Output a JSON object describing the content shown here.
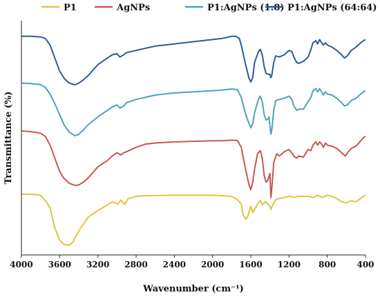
{
  "chart_data": {
    "type": "line",
    "xlabel": "Wavenumber (cm⁻¹)",
    "ylabel": "Transmittance (%)",
    "xlim": [
      4000,
      400
    ],
    "x_reversed": true,
    "x_ticks": [
      4000,
      3600,
      3200,
      2800,
      2400,
      2000,
      1600,
      1200,
      800,
      400
    ],
    "x_tick_labels": [
      "4000",
      "3600",
      "3200",
      "2800",
      "2400",
      "2000",
      "1600",
      "1200",
      "800",
      "400"
    ],
    "ylim": [
      0,
      100
    ],
    "y_ticks_visible": false,
    "grid": false,
    "legend_position": "top",
    "series": [
      {
        "name": "P1",
        "color": "#e0c440",
        "points": [
          [
            4000,
            23.5
          ],
          [
            3900,
            23.5
          ],
          [
            3800,
            23.0
          ],
          [
            3740,
            20.0
          ],
          [
            3700,
            17.0
          ],
          [
            3650,
            8.0
          ],
          [
            3600,
            2.5
          ],
          [
            3560,
            0.5
          ],
          [
            3500,
            0.0
          ],
          [
            3460,
            1.5
          ],
          [
            3420,
            5.0
          ],
          [
            3380,
            8.0
          ],
          [
            3300,
            13.0
          ],
          [
            3200,
            16.0
          ],
          [
            3120,
            18.0
          ],
          [
            3050,
            20.0
          ],
          [
            2990,
            19.0
          ],
          [
            2960,
            20.8
          ],
          [
            2920,
            18.8
          ],
          [
            2880,
            21.5
          ],
          [
            2800,
            22.5
          ],
          [
            2700,
            22.8
          ],
          [
            2400,
            23.0
          ],
          [
            2000,
            23.0
          ],
          [
            1900,
            22.8
          ],
          [
            1800,
            22.5
          ],
          [
            1740,
            21.0
          ],
          [
            1700,
            19.0
          ],
          [
            1680,
            14.0
          ],
          [
            1650,
            12.0
          ],
          [
            1630,
            13.5
          ],
          [
            1600,
            18.0
          ],
          [
            1580,
            15.0
          ],
          [
            1560,
            16.5
          ],
          [
            1530,
            19.0
          ],
          [
            1500,
            20.5
          ],
          [
            1480,
            18.5
          ],
          [
            1450,
            20.0
          ],
          [
            1420,
            19.0
          ],
          [
            1400,
            18.0
          ],
          [
            1390,
            16.5
          ],
          [
            1370,
            18.5
          ],
          [
            1340,
            21.0
          ],
          [
            1300,
            21.5
          ],
          [
            1200,
            22.5
          ],
          [
            1150,
            22.0
          ],
          [
            1100,
            22.5
          ],
          [
            1000,
            22.5
          ],
          [
            950,
            22.0
          ],
          [
            900,
            23.0
          ],
          [
            850,
            22.0
          ],
          [
            800,
            23.0
          ],
          [
            750,
            22.5
          ],
          [
            700,
            21.5
          ],
          [
            650,
            20.0
          ],
          [
            600,
            19.5
          ],
          [
            550,
            20.5
          ],
          [
            500,
            20.0
          ],
          [
            450,
            21.5
          ],
          [
            420,
            22.5
          ],
          [
            400,
            23.0
          ]
        ]
      },
      {
        "name": "AgNPs",
        "color": "#c9544f",
        "points": [
          [
            4000,
            52.5
          ],
          [
            3900,
            52.2
          ],
          [
            3800,
            51.5
          ],
          [
            3750,
            50.0
          ],
          [
            3700,
            46.0
          ],
          [
            3650,
            40.0
          ],
          [
            3600,
            34.0
          ],
          [
            3560,
            31.0
          ],
          [
            3500,
            28.5
          ],
          [
            3440,
            27.5
          ],
          [
            3400,
            27.8
          ],
          [
            3350,
            29.0
          ],
          [
            3300,
            31.0
          ],
          [
            3200,
            36.0
          ],
          [
            3100,
            39.0
          ],
          [
            3050,
            41.0
          ],
          [
            3000,
            42.5
          ],
          [
            2960,
            41.5
          ],
          [
            2930,
            42.5
          ],
          [
            2900,
            43.0
          ],
          [
            2800,
            45.0
          ],
          [
            2700,
            46.5
          ],
          [
            2600,
            47.0
          ],
          [
            2400,
            47.5
          ],
          [
            2200,
            47.8
          ],
          [
            2000,
            48.0
          ],
          [
            1900,
            48.0
          ],
          [
            1800,
            48.3
          ],
          [
            1740,
            48.2
          ],
          [
            1700,
            45.0
          ],
          [
            1660,
            36.0
          ],
          [
            1620,
            28.0
          ],
          [
            1600,
            25.5
          ],
          [
            1580,
            29.0
          ],
          [
            1560,
            35.0
          ],
          [
            1530,
            42.0
          ],
          [
            1500,
            43.5
          ],
          [
            1480,
            40.0
          ],
          [
            1460,
            32.0
          ],
          [
            1440,
            29.0
          ],
          [
            1420,
            30.0
          ],
          [
            1400,
            33.0
          ],
          [
            1390,
            22.0
          ],
          [
            1380,
            26.0
          ],
          [
            1360,
            38.0
          ],
          [
            1330,
            42.0
          ],
          [
            1300,
            41.0
          ],
          [
            1250,
            43.0
          ],
          [
            1200,
            44.0
          ],
          [
            1180,
            43.0
          ],
          [
            1150,
            41.0
          ],
          [
            1120,
            40.0
          ],
          [
            1100,
            41.0
          ],
          [
            1050,
            40.5
          ],
          [
            1000,
            44.0
          ],
          [
            970,
            43.5
          ],
          [
            950,
            46.0
          ],
          [
            920,
            47.5
          ],
          [
            900,
            46.0
          ],
          [
            880,
            47.5
          ],
          [
            860,
            46.5
          ],
          [
            840,
            45.0
          ],
          [
            820,
            47.0
          ],
          [
            800,
            46.0
          ],
          [
            750,
            45.5
          ],
          [
            700,
            44.5
          ],
          [
            650,
            42.5
          ],
          [
            610,
            41.0
          ],
          [
            580,
            43.0
          ],
          [
            550,
            44.5
          ],
          [
            500,
            45.5
          ],
          [
            450,
            48.0
          ],
          [
            420,
            49.5
          ],
          [
            400,
            50.0
          ]
        ]
      },
      {
        "name": "P1:AgNPs (1:8)",
        "color": "#4aa3b5",
        "points": [
          [
            4000,
            74.5
          ],
          [
            3900,
            74.3
          ],
          [
            3800,
            73.8
          ],
          [
            3750,
            72.5
          ],
          [
            3700,
            69.5
          ],
          [
            3650,
            65.0
          ],
          [
            3600,
            60.0
          ],
          [
            3550,
            55.0
          ],
          [
            3500,
            52.0
          ],
          [
            3440,
            50.3
          ],
          [
            3400,
            51.0
          ],
          [
            3350,
            53.0
          ],
          [
            3300,
            55.5
          ],
          [
            3200,
            59.0
          ],
          [
            3100,
            62.0
          ],
          [
            3050,
            63.5
          ],
          [
            3000,
            64.5
          ],
          [
            2970,
            63.0
          ],
          [
            2930,
            64.0
          ],
          [
            2900,
            65.5
          ],
          [
            2800,
            67.0
          ],
          [
            2700,
            68.0
          ],
          [
            2600,
            69.0
          ],
          [
            2400,
            70.0
          ],
          [
            2200,
            70.5
          ],
          [
            2000,
            71.0
          ],
          [
            1900,
            71.3
          ],
          [
            1800,
            71.8
          ],
          [
            1740,
            71.5
          ],
          [
            1700,
            68.0
          ],
          [
            1660,
            61.0
          ],
          [
            1620,
            56.0
          ],
          [
            1600,
            54.0
          ],
          [
            1580,
            56.0
          ],
          [
            1560,
            61.0
          ],
          [
            1520,
            67.0
          ],
          [
            1500,
            68.5
          ],
          [
            1480,
            66.0
          ],
          [
            1460,
            60.0
          ],
          [
            1440,
            57.5
          ],
          [
            1420,
            58.0
          ],
          [
            1410,
            59.0
          ],
          [
            1390,
            51.0
          ],
          [
            1380,
            53.0
          ],
          [
            1360,
            62.0
          ],
          [
            1340,
            66.5
          ],
          [
            1300,
            67.0
          ],
          [
            1250,
            67.5
          ],
          [
            1200,
            68.5
          ],
          [
            1170,
            67.0
          ],
          [
            1150,
            64.0
          ],
          [
            1120,
            62.0
          ],
          [
            1100,
            62.5
          ],
          [
            1050,
            62.5
          ],
          [
            1000,
            66.0
          ],
          [
            970,
            68.0
          ],
          [
            950,
            71.0
          ],
          [
            920,
            72.0
          ],
          [
            900,
            70.5
          ],
          [
            880,
            72.0
          ],
          [
            860,
            70.5
          ],
          [
            840,
            69.0
          ],
          [
            820,
            70.5
          ],
          [
            800,
            69.5
          ],
          [
            750,
            69.0
          ],
          [
            700,
            67.5
          ],
          [
            650,
            65.5
          ],
          [
            620,
            64.0
          ],
          [
            590,
            64.5
          ],
          [
            550,
            66.5
          ],
          [
            500,
            67.5
          ],
          [
            450,
            69.5
          ],
          [
            420,
            70.5
          ],
          [
            400,
            71.0
          ]
        ]
      },
      {
        "name": "P1:AgNPs (64:64)",
        "color": "#2c5a97",
        "points": [
          [
            4000,
            96.0
          ],
          [
            3900,
            96.0
          ],
          [
            3800,
            95.7
          ],
          [
            3750,
            95.0
          ],
          [
            3700,
            92.0
          ],
          [
            3650,
            86.0
          ],
          [
            3600,
            80.0
          ],
          [
            3550,
            76.5
          ],
          [
            3500,
            74.5
          ],
          [
            3440,
            73.7
          ],
          [
            3400,
            74.5
          ],
          [
            3350,
            76.0
          ],
          [
            3300,
            78.0
          ],
          [
            3200,
            83.0
          ],
          [
            3100,
            86.0
          ],
          [
            3050,
            87.5
          ],
          [
            3000,
            88.0
          ],
          [
            2970,
            86.5
          ],
          [
            2930,
            87.5
          ],
          [
            2900,
            88.5
          ],
          [
            2800,
            89.5
          ],
          [
            2700,
            90.5
          ],
          [
            2600,
            91.5
          ],
          [
            2400,
            92.5
          ],
          [
            2200,
            93.5
          ],
          [
            2000,
            94.5
          ],
          [
            1900,
            95.0
          ],
          [
            1800,
            96.0
          ],
          [
            1760,
            96.0
          ],
          [
            1720,
            95.0
          ],
          [
            1700,
            92.0
          ],
          [
            1660,
            84.0
          ],
          [
            1620,
            77.0
          ],
          [
            1600,
            75.0
          ],
          [
            1580,
            77.0
          ],
          [
            1560,
            84.0
          ],
          [
            1520,
            89.0
          ],
          [
            1500,
            90.0
          ],
          [
            1480,
            87.5
          ],
          [
            1460,
            82.0
          ],
          [
            1440,
            79.0
          ],
          [
            1420,
            78.5
          ],
          [
            1400,
            78.5
          ],
          [
            1390,
            77.0
          ],
          [
            1380,
            78.0
          ],
          [
            1360,
            84.0
          ],
          [
            1340,
            87.0
          ],
          [
            1300,
            86.5
          ],
          [
            1250,
            87.5
          ],
          [
            1200,
            89.5
          ],
          [
            1170,
            89.0
          ],
          [
            1150,
            86.5
          ],
          [
            1120,
            84.0
          ],
          [
            1100,
            83.5
          ],
          [
            1050,
            84.5
          ],
          [
            1000,
            86.5
          ],
          [
            970,
            90.0
          ],
          [
            950,
            93.0
          ],
          [
            920,
            94.0
          ],
          [
            900,
            92.5
          ],
          [
            880,
            94.5
          ],
          [
            860,
            93.0
          ],
          [
            840,
            92.0
          ],
          [
            820,
            93.0
          ],
          [
            800,
            92.0
          ],
          [
            750,
            91.0
          ],
          [
            700,
            89.5
          ],
          [
            650,
            87.5
          ],
          [
            620,
            86.0
          ],
          [
            590,
            87.0
          ],
          [
            550,
            89.5
          ],
          [
            500,
            91.0
          ],
          [
            450,
            93.0
          ],
          [
            420,
            94.0
          ],
          [
            400,
            94.5
          ]
        ]
      }
    ]
  }
}
